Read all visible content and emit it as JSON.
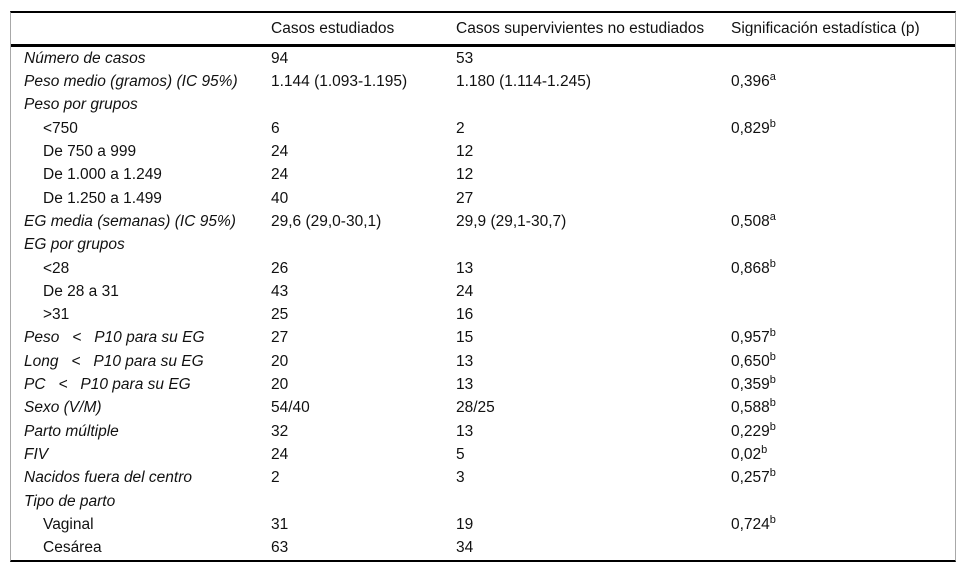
{
  "table": {
    "headers": {
      "label_col": "",
      "col1": "Casos estudiados",
      "col2": "Casos supervivientes no estudiados",
      "col3": "Significación estadística (p)"
    },
    "rows": [
      {
        "label": "Número de casos",
        "italic": true,
        "indent": false,
        "c1": "94",
        "c2": "53",
        "p": "",
        "sup": ""
      },
      {
        "label": "Peso medio (gramos) (IC 95%)",
        "italic": true,
        "indent": false,
        "c1": "1.144 (1.093-1.195)",
        "c2": "1.180 (1.114-1.245)",
        "p": "0,396",
        "sup": "a"
      },
      {
        "label": "Peso por grupos",
        "italic": true,
        "indent": false,
        "c1": "",
        "c2": "",
        "p": "",
        "sup": ""
      },
      {
        "label": "<750",
        "italic": false,
        "indent": true,
        "c1": "6",
        "c2": "2",
        "p": "0,829",
        "sup": "b"
      },
      {
        "label": "De 750 a 999",
        "italic": false,
        "indent": true,
        "c1": "24",
        "c2": "12",
        "p": "",
        "sup": ""
      },
      {
        "label": "De 1.000 a 1.249",
        "italic": false,
        "indent": true,
        "c1": "24",
        "c2": "12",
        "p": "",
        "sup": ""
      },
      {
        "label": "De 1.250 a 1.499",
        "italic": false,
        "indent": true,
        "c1": "40",
        "c2": "27",
        "p": "",
        "sup": ""
      },
      {
        "label": "EG media (semanas) (IC 95%)",
        "italic": true,
        "indent": false,
        "c1": "29,6 (29,0-30,1)",
        "c2": "29,9 (29,1-30,7)",
        "p": "0,508",
        "sup": "a"
      },
      {
        "label": "EG por grupos",
        "italic": true,
        "indent": false,
        "c1": "",
        "c2": "",
        "p": "",
        "sup": ""
      },
      {
        "label": "<28",
        "italic": false,
        "indent": true,
        "c1": "26",
        "c2": "13",
        "p": "0,868",
        "sup": "b"
      },
      {
        "label": "De 28 a 31",
        "italic": false,
        "indent": true,
        "c1": "43",
        "c2": "24",
        "p": "",
        "sup": ""
      },
      {
        "label": ">31",
        "italic": false,
        "indent": true,
        "c1": "25",
        "c2": "16",
        "p": "",
        "sup": ""
      },
      {
        "label": "Peso   <   P10 para su EG",
        "italic": true,
        "indent": false,
        "c1": "27",
        "c2": "15",
        "p": "0,957",
        "sup": "b"
      },
      {
        "label": "Long   <   P10 para su EG",
        "italic": true,
        "indent": false,
        "c1": "20",
        "c2": "13",
        "p": "0,650",
        "sup": "b"
      },
      {
        "label": "PC   <   P10 para su EG",
        "italic": true,
        "indent": false,
        "c1": "20",
        "c2": "13",
        "p": "0,359",
        "sup": "b"
      },
      {
        "label": "Sexo (V/M)",
        "italic": true,
        "indent": false,
        "c1": "54/40",
        "c2": "28/25",
        "p": "0,588",
        "sup": "b"
      },
      {
        "label": "Parto múltiple",
        "italic": true,
        "indent": false,
        "c1": "32",
        "c2": "13",
        "p": "0,229",
        "sup": "b"
      },
      {
        "label": "FIV",
        "italic": true,
        "indent": false,
        "c1": "24",
        "c2": "5",
        "p": "0,02",
        "sup": "b"
      },
      {
        "label": "Nacidos fuera del centro",
        "italic": true,
        "indent": false,
        "c1": "2",
        "c2": "3",
        "p": "0,257",
        "sup": "b"
      },
      {
        "label": "Tipo de parto",
        "italic": true,
        "indent": false,
        "c1": "",
        "c2": "",
        "p": "",
        "sup": ""
      },
      {
        "label": "Vaginal",
        "italic": false,
        "indent": true,
        "c1": "31",
        "c2": "19",
        "p": "0,724",
        "sup": "b"
      },
      {
        "label": "Cesárea",
        "italic": false,
        "indent": true,
        "c1": "63",
        "c2": "34",
        "p": "",
        "sup": ""
      }
    ]
  }
}
